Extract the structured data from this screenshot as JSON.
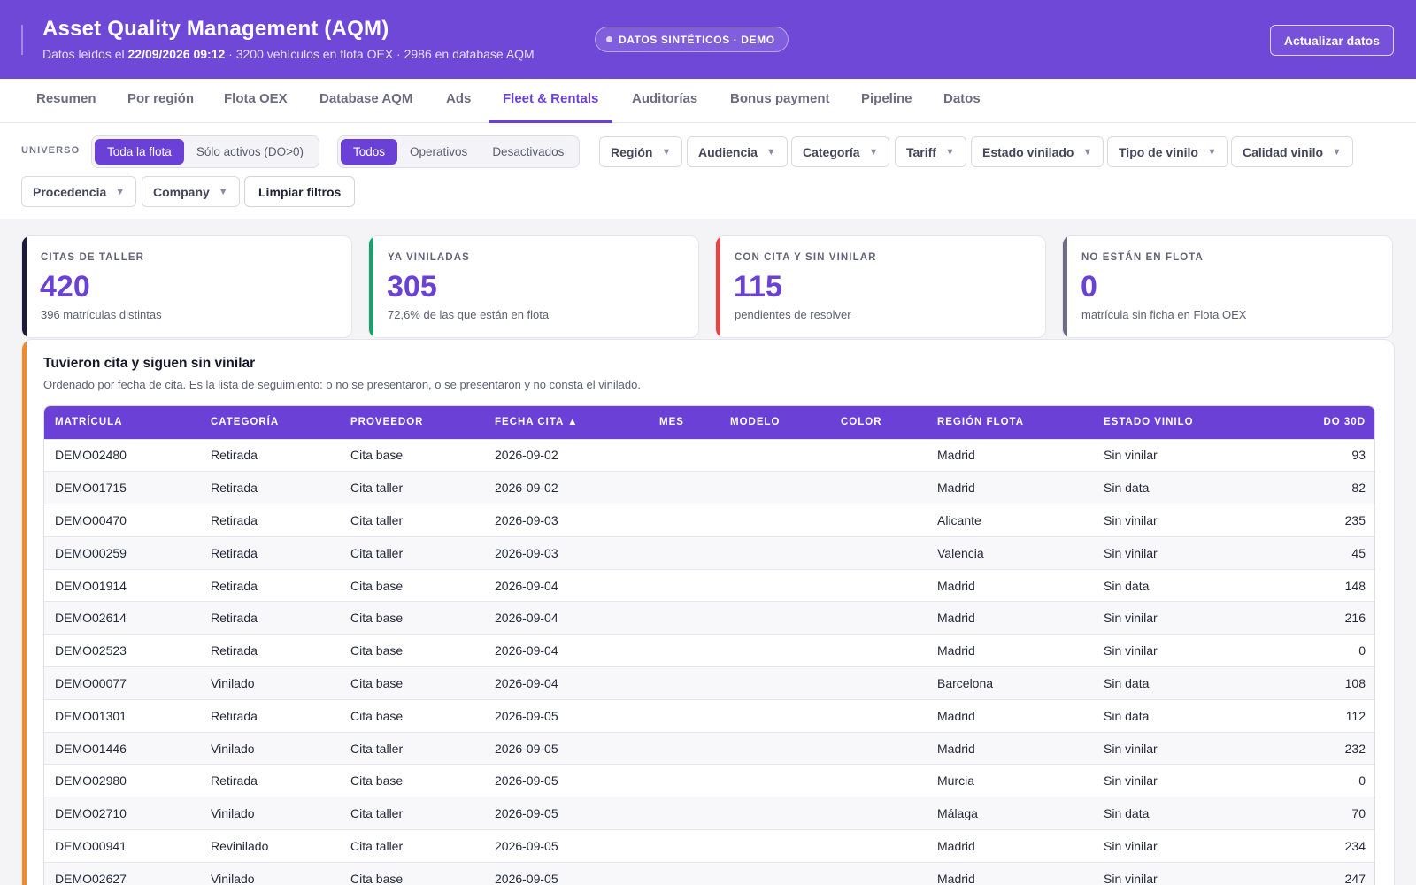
{
  "header": {
    "title": "Asset Quality Management (AQM)",
    "sub_prefix": "Datos leídos el",
    "sub_date": "22/09/2026 09:12",
    "sub_rest": "· 3200 vehículos en flota OEX · 2986 en database AQM",
    "badge": "DATOS SINTÉTICOS · DEMO",
    "refresh_label": "Actualizar datos"
  },
  "tabs": [
    {
      "label": "Resumen"
    },
    {
      "label": "Por región"
    },
    {
      "label": "Flota OEX"
    },
    {
      "label": "Database AQM"
    },
    {
      "label": "Ads"
    },
    {
      "label": "Fleet & Rentals",
      "active": true
    },
    {
      "label": "Auditorías"
    },
    {
      "label": "Bonus payment"
    },
    {
      "label": "Pipeline"
    },
    {
      "label": "Datos"
    }
  ],
  "filters": {
    "universe_label": "UNIVERSO",
    "universe": [
      "Toda la flota",
      "Sólo activos (DO>0)"
    ],
    "status": [
      "Todos",
      "Operativos",
      "Desactivados"
    ],
    "dropdowns": [
      "Región",
      "Audiencia",
      "Categoría",
      "Tariff",
      "Estado vinilado",
      "Tipo de vinilo",
      "Calidad vinilo",
      "Procedencia",
      "Company"
    ],
    "caret": "▼",
    "clear_label": "Limpiar filtros"
  },
  "kpis": [
    {
      "title": "CITAS DE TALLER",
      "value": "420",
      "sub": "396 matrículas distintas",
      "color": "#1e1b3a"
    },
    {
      "title": "YA VINILADAS",
      "value": "305",
      "sub": "72,6% de las que están en flota",
      "color": "#1f9d6b"
    },
    {
      "title": "CON CITA Y SIN VINILAR",
      "value": "115",
      "sub": "pendientes de resolver",
      "color": "#e04848"
    },
    {
      "title": "NO ESTÁN EN FLOTA",
      "value": "0",
      "sub": "matrícula sin ficha en Flota OEX",
      "color": "#6e6c84"
    }
  ],
  "panel": {
    "title": "Tuvieron cita y siguen sin vinilar",
    "desc": "Ordenado por fecha de cita. Es la lista de seguimiento: o no se presentaron, o se presentaron y no consta el vinilado.",
    "columns": [
      "MATRÍCULA",
      "CATEGORÍA",
      "PROVEEDOR",
      "FECHA CITA ▲",
      "MES",
      "MODELO",
      "COLOR",
      "REGIÓN FLOTA",
      "ESTADO VINILO",
      "DO 30D"
    ],
    "rows": [
      [
        "DEMO02480",
        "Retirada",
        "Cita base",
        "2026-09-02",
        "",
        "",
        "",
        "Madrid",
        "Sin vinilar",
        "93"
      ],
      [
        "DEMO01715",
        "Retirada",
        "Cita taller",
        "2026-09-02",
        "",
        "",
        "",
        "Madrid",
        "Sin data",
        "82"
      ],
      [
        "DEMO00470",
        "Retirada",
        "Cita taller",
        "2026-09-03",
        "",
        "",
        "",
        "Alicante",
        "Sin vinilar",
        "235"
      ],
      [
        "DEMO00259",
        "Retirada",
        "Cita taller",
        "2026-09-03",
        "",
        "",
        "",
        "Valencia",
        "Sin vinilar",
        "45"
      ],
      [
        "DEMO01914",
        "Retirada",
        "Cita base",
        "2026-09-04",
        "",
        "",
        "",
        "Madrid",
        "Sin data",
        "148"
      ],
      [
        "DEMO02614",
        "Retirada",
        "Cita base",
        "2026-09-04",
        "",
        "",
        "",
        "Madrid",
        "Sin vinilar",
        "216"
      ],
      [
        "DEMO02523",
        "Retirada",
        "Cita base",
        "2026-09-04",
        "",
        "",
        "",
        "Madrid",
        "Sin vinilar",
        "0"
      ],
      [
        "DEMO00077",
        "Vinilado",
        "Cita base",
        "2026-09-04",
        "",
        "",
        "",
        "Barcelona",
        "Sin data",
        "108"
      ],
      [
        "DEMO01301",
        "Retirada",
        "Cita base",
        "2026-09-05",
        "",
        "",
        "",
        "Madrid",
        "Sin data",
        "112"
      ],
      [
        "DEMO01446",
        "Vinilado",
        "Cita taller",
        "2026-09-05",
        "",
        "",
        "",
        "Madrid",
        "Sin vinilar",
        "232"
      ],
      [
        "DEMO02980",
        "Retirada",
        "Cita base",
        "2026-09-05",
        "",
        "",
        "",
        "Murcia",
        "Sin vinilar",
        "0"
      ],
      [
        "DEMO02710",
        "Vinilado",
        "Cita taller",
        "2026-09-05",
        "",
        "",
        "",
        "Málaga",
        "Sin data",
        "70"
      ],
      [
        "DEMO00941",
        "Revinilado",
        "Cita taller",
        "2026-09-05",
        "",
        "",
        "",
        "Madrid",
        "Sin vinilar",
        "234"
      ],
      [
        "DEMO02627",
        "Vinilado",
        "Cita base",
        "2026-09-05",
        "",
        "",
        "",
        "Madrid",
        "Sin vinilar",
        "247"
      ]
    ]
  }
}
